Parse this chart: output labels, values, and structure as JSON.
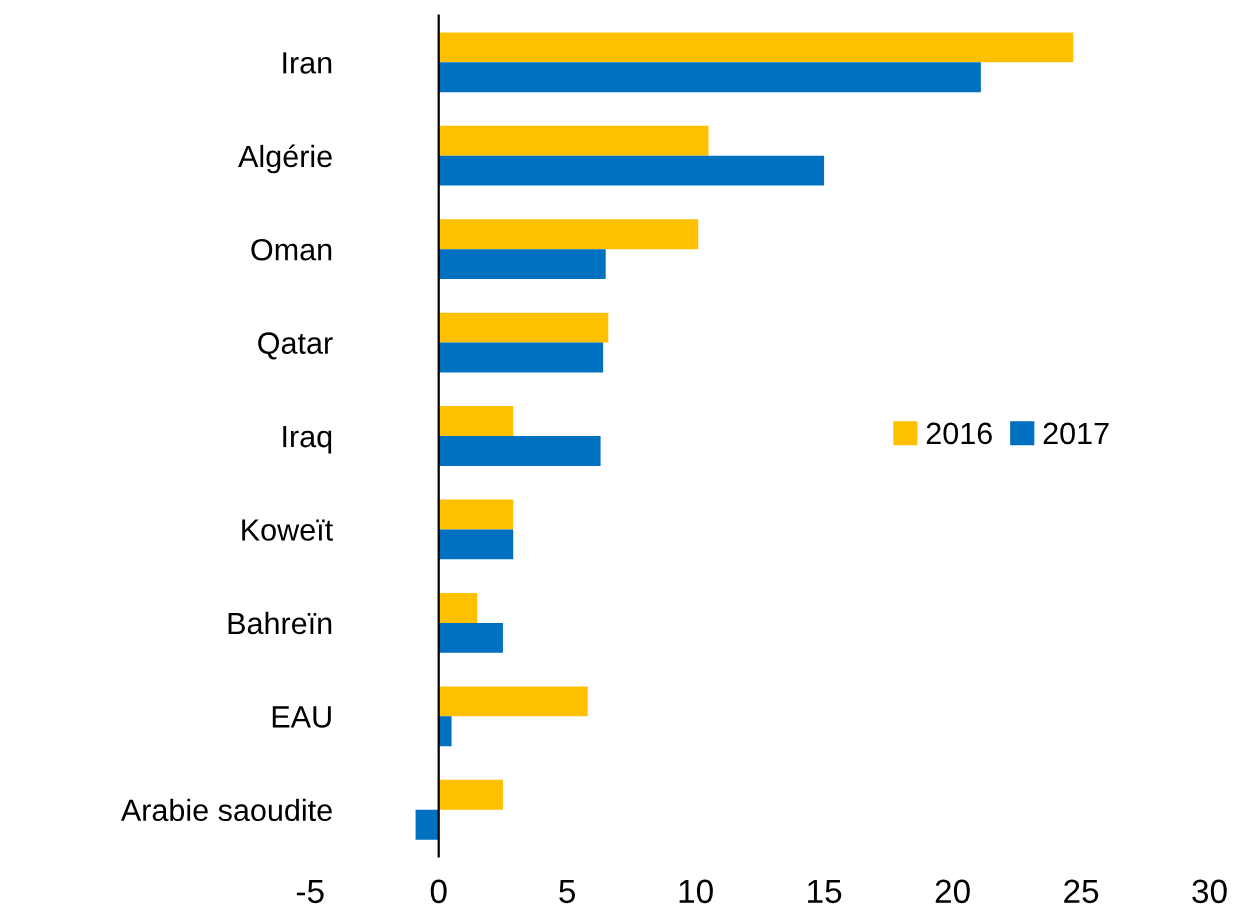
{
  "chart_data": {
    "type": "bar",
    "orientation": "horizontal",
    "categories": [
      "Iran",
      "Algérie",
      "Oman",
      "Qatar",
      "Iraq",
      "Koweït",
      "Bahreïn",
      "EAU",
      "Arabie saoudite"
    ],
    "series": [
      {
        "name": "2016",
        "color": "#ffc000",
        "values": [
          24.7,
          10.5,
          10.1,
          6.6,
          2.9,
          2.9,
          1.5,
          5.8,
          2.5
        ]
      },
      {
        "name": "2017",
        "color": "#0070c0",
        "values": [
          21.1,
          15.0,
          6.5,
          6.4,
          6.3,
          2.9,
          2.5,
          0.5,
          -0.9
        ]
      }
    ],
    "xlim": [
      -5,
      30
    ],
    "xticks": [
      -5,
      0,
      5,
      10,
      15,
      20,
      25,
      30
    ],
    "legend": "center right"
  }
}
